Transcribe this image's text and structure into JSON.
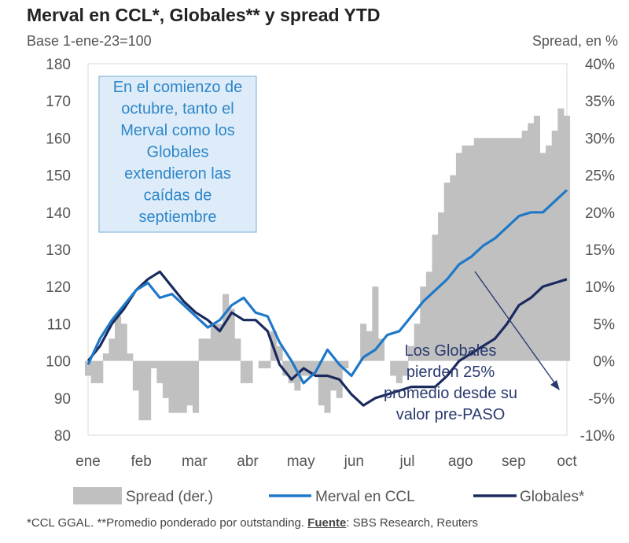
{
  "chart_data": {
    "type": "line",
    "title": "Merval en CCL*, Globales** y spread YTD",
    "subtitle": "Base 1-ene-23=100",
    "y2label": "Spread, en %",
    "ylim": [
      80,
      180
    ],
    "y2lim": [
      -10,
      40
    ],
    "yticks": [
      "180",
      "170",
      "160",
      "150",
      "140",
      "130",
      "120",
      "110",
      "100",
      "90",
      "80"
    ],
    "y2ticks": [
      "40%",
      "35%",
      "30%",
      "25%",
      "20%",
      "15%",
      "10%",
      "5%",
      "0%",
      "-5%",
      "-10%"
    ],
    "months": [
      "ene",
      "feb",
      "mar",
      "abr",
      "may",
      "jun",
      "jul",
      "ago",
      "sep",
      "oct"
    ],
    "series": [
      {
        "name": "Spread (der.)",
        "kind": "bar",
        "axis": "right",
        "color": "#c0c0c0",
        "x": [
          0,
          0.5,
          1,
          1.5,
          2,
          2.5,
          3,
          3.5,
          4,
          4.5,
          5,
          5.5,
          6,
          6.5,
          7,
          7.5,
          8,
          8.5,
          9,
          9.5,
          10,
          10.5,
          11,
          11.5,
          12,
          12.5,
          13,
          13.5,
          14,
          14.5,
          15,
          15.5,
          16,
          16.5,
          17,
          17.5,
          18,
          18.5,
          19,
          19.5,
          20,
          20.5,
          21,
          21.5,
          22,
          22.5,
          23,
          23.5,
          24,
          24.5,
          25,
          25.5,
          26,
          26.5,
          27,
          27.5,
          28,
          28.5,
          29,
          29.5,
          30,
          30.5,
          31,
          31.5,
          32,
          32.5,
          33,
          33.5,
          34,
          34.5,
          35,
          35.5,
          36,
          36.5,
          37,
          37.5,
          38,
          38.5,
          39,
          39.5,
          40
        ],
        "values": [
          -2,
          -3,
          -3,
          1,
          3,
          6,
          5,
          1,
          -4,
          -8,
          -8,
          -1,
          -3,
          -5,
          -7,
          -7,
          -7,
          -6,
          -7,
          3,
          3,
          5,
          5,
          9,
          7,
          3,
          -3,
          -3,
          0,
          -1,
          -1,
          4,
          2,
          -2,
          -3,
          -4,
          -2,
          -2,
          -2,
          -6,
          -7,
          -4,
          -5,
          -1,
          0,
          0,
          5,
          4,
          10,
          3,
          0,
          -2,
          -3,
          -2,
          2,
          5,
          10,
          12,
          17,
          20,
          24,
          25,
          28,
          29,
          29,
          30,
          30,
          30,
          30,
          30,
          30,
          30,
          30,
          31,
          32,
          33,
          28,
          29,
          31,
          34,
          33
        ]
      },
      {
        "name": "Merval en CCL",
        "kind": "line",
        "axis": "left",
        "color": "#1f78c8",
        "x": [
          0,
          1,
          2,
          3,
          4,
          5,
          6,
          7,
          8,
          9,
          10,
          11,
          12,
          13,
          14,
          15,
          16,
          17,
          18,
          19,
          20,
          21,
          22,
          23,
          24,
          25,
          26,
          27,
          28,
          29,
          30,
          31,
          32,
          33,
          34,
          35,
          36,
          37,
          38,
          39,
          40
        ],
        "values": [
          99,
          106,
          111,
          115,
          119,
          121,
          117,
          118,
          115,
          112,
          109,
          111,
          115,
          117,
          113,
          112,
          105,
          100,
          94,
          97,
          103,
          99,
          96,
          101,
          103,
          107,
          108,
          112,
          116,
          119,
          122,
          126,
          128,
          131,
          133,
          136,
          139,
          140,
          140,
          143,
          146
        ]
      },
      {
        "name": "Globales*",
        "kind": "line",
        "axis": "left",
        "color": "#1a2a5e",
        "x": [
          0,
          1,
          2,
          3,
          4,
          5,
          6,
          7,
          8,
          9,
          10,
          11,
          12,
          13,
          14,
          15,
          16,
          17,
          18,
          19,
          20,
          21,
          22,
          23,
          24,
          25,
          26,
          27,
          28,
          29,
          30,
          31,
          32,
          33,
          34,
          35,
          36,
          37,
          38,
          39,
          40
        ],
        "values": [
          100,
          104,
          110,
          114,
          119,
          122,
          124,
          120,
          116,
          113,
          111,
          108,
          113,
          111,
          111,
          108,
          99,
          95,
          98,
          96,
          96,
          95,
          91,
          88,
          90,
          91,
          92,
          93,
          93,
          93,
          96,
          100,
          102,
          104,
          106,
          110,
          115,
          117,
          120,
          121,
          122
        ]
      }
    ]
  },
  "annotations": {
    "box_lines": [
      "En el comienzo de",
      "octubre, tanto el",
      "Merval como los",
      "Globales",
      "extendieron las",
      "caídas de",
      "septiembre"
    ],
    "globales_lines": [
      "Los Globales",
      "pierden 25%",
      "promedio desde su",
      "valor pre-PASO"
    ]
  },
  "legend": {
    "spread": "Spread (der.)",
    "merval": "Merval en CCL",
    "globales": "Globales*"
  },
  "footnote": {
    "text": "*CCL GGAL. **Promedio ponderado por outstanding.",
    "source_label": "Fuente",
    "source_text": ": SBS Research, Reuters"
  }
}
